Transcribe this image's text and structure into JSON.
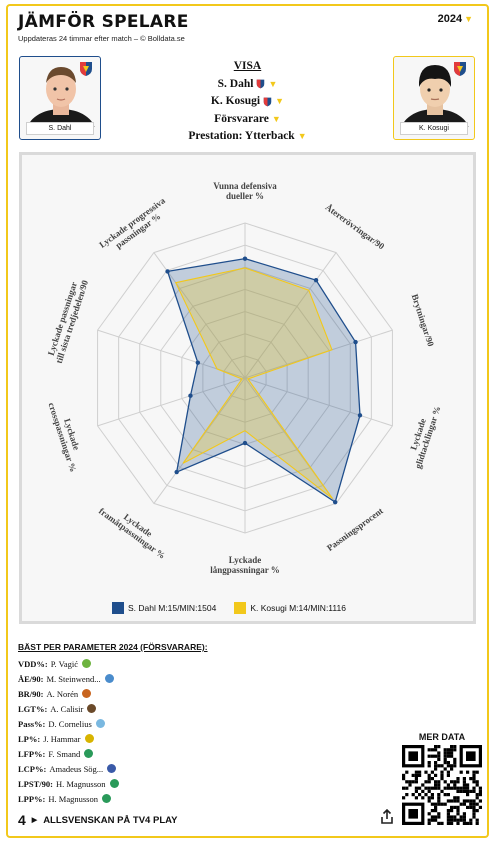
{
  "header": {
    "title": "JÄMFÖR SPELARE",
    "subtitle": "Uppdateras 24 timmar efter match – © Bolldata.se",
    "year": "2024"
  },
  "players": {
    "left": {
      "name": "S. Dahl",
      "color": "#1f4e8c"
    },
    "right": {
      "name": "K. Kosugi",
      "color": "#f2c81b"
    }
  },
  "visa": {
    "heading": "VISA",
    "player1": "S. Dahl",
    "player2": "K. Kosugi",
    "position": "Försvarare",
    "performance": "Prestation: Ytterback"
  },
  "chart_data": {
    "type": "radar",
    "axes": [
      "Vunna defensiva dueller %",
      "Återerövringar/90",
      "Brytningar/90",
      "Lyckade glidtacklingar %",
      "Passningsprocent",
      "Lyckade långpassningar %",
      "Lyckade framåtpassningar %",
      "Lyckade crosspassningar %",
      "Lyckade passningar till sista tredjedelen/90",
      "Lyckade progressiva passningar %"
    ],
    "axis_lines": [
      [
        "Vunna defensiva",
        "dueller %"
      ],
      [
        "Återerövringar/90"
      ],
      [
        "Brytningar/90"
      ],
      [
        "Lyckade",
        "glidtacklingar %"
      ],
      [
        "Passningsprocent"
      ],
      [
        "Lyckade",
        "långpassningar %"
      ],
      [
        "Lyckade",
        "framåtpassningar %"
      ],
      [
        "Lyckade",
        "crosspassningar %"
      ],
      [
        "Lyckade passningar",
        "till sista tredjedelen/90"
      ],
      [
        "Lyckade progressiva",
        "passningar %"
      ]
    ],
    "rmax": 1,
    "grid": true,
    "series": [
      {
        "name": "S. Dahl M:15/MIN:1504",
        "color": "#1f4e8c",
        "values": [
          0.77,
          0.78,
          0.75,
          0.78,
          0.99,
          0.42,
          0.75,
          0.37,
          0.32,
          0.85
        ]
      },
      {
        "name": "K. Kosugi M:14/MIN:1116",
        "color": "#f2c81b",
        "values": [
          0.71,
          0.7,
          0.59,
          0.02,
          0.96,
          0.34,
          0.68,
          0.02,
          0.19,
          0.76
        ]
      }
    ]
  },
  "best": {
    "heading": "BÄST PER PARAMETER 2024 (FÖRSVARARE):",
    "rows": [
      {
        "k": "VDD%:",
        "v": "P. Vagić",
        "c": "#6db33f"
      },
      {
        "k": "ÅE/90:",
        "v": "M. Steinwend...",
        "c": "#4a8ccc"
      },
      {
        "k": "BR/90:",
        "v": "A. Norén",
        "c": "#c8641e"
      },
      {
        "k": "LGT%:",
        "v": "A. Calisir",
        "c": "#6b4a2a"
      },
      {
        "k": "Pass%:",
        "v": "D. Cornelius",
        "c": "#7ab8e0"
      },
      {
        "k": "LP%:",
        "v": "J. Hammar",
        "c": "#d8b400"
      },
      {
        "k": "LFP%:",
        "v": "F. Smand",
        "c": "#2a9a5a"
      },
      {
        "k": "LCP%:",
        "v": "Amadeus Sög...",
        "c": "#3a5aa8"
      },
      {
        "k": "LPST/90:",
        "v": "H. Magnusson",
        "c": "#2a9a5a"
      },
      {
        "k": "LPP%:",
        "v": "H. Magnusson",
        "c": "#2a9a5a"
      }
    ]
  },
  "merdata": "MER DATA",
  "footer": {
    "logo": "4",
    "text": "ALLSVENSKAN PÅ TV4 PLAY"
  },
  "icons": {
    "share": "share-icon",
    "badge": "club-crest-icon",
    "dropdown": "chevron-down-icon"
  }
}
